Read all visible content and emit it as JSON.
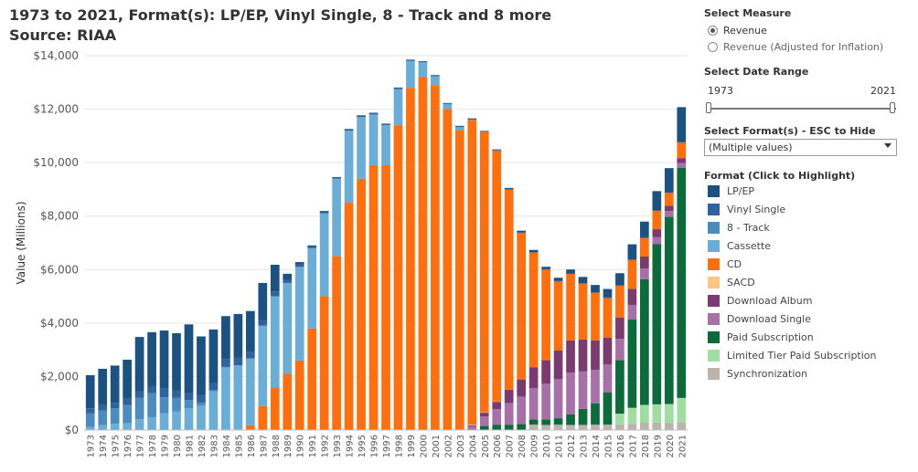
{
  "header": {
    "title": "1973 to 2021, Format(s): LP/EP, Vinyl Single, 8 - Track and 8 more",
    "subtitle": "Source: RIAA"
  },
  "measure": {
    "label": "Select Measure",
    "options": [
      "Revenue",
      "Revenue (Adjusted for Inflation)"
    ],
    "selected": 0
  },
  "date_range": {
    "label": "Select Date Range",
    "start": "1973",
    "end": "2021"
  },
  "format_filter": {
    "label": "Select Format(s) - ESC to Hide",
    "value": "(Multiple values)"
  },
  "legend": {
    "title": "Format (Click to Highlight)"
  },
  "colors": {
    "LP/EP": "#1c5282",
    "Vinyl Single": "#2f63a0",
    "8 - Track": "#4a8cc0",
    "Cassette": "#6aaed8",
    "CD": "#ff6f0e",
    "SACD": "#fcc581",
    "Download Album": "#7b3a70",
    "Download Single": "#a870a8",
    "Paid Subscription": "#0c6b3a",
    "Limited Tier Paid Subscription": "#9fdea0",
    "Synchronization": "#bdb3ad"
  },
  "chart_data": {
    "type": "bar",
    "stacked": true,
    "ylabel": "Value (Millions)",
    "ylim": [
      0,
      14000
    ],
    "yticks": [
      "$0",
      "$2,000",
      "$4,000",
      "$6,000",
      "$8,000",
      "$10,000",
      "$12,000",
      "$14,000"
    ],
    "grid": true,
    "legend_position": "right",
    "categories": [
      "1973",
      "1974",
      "1975",
      "1976",
      "1977",
      "1978",
      "1979",
      "1980",
      "1981",
      "1982",
      "1983",
      "1984",
      "1985",
      "1986",
      "1987",
      "1988",
      "1989",
      "1990",
      "1991",
      "1992",
      "1993",
      "1994",
      "1995",
      "1996",
      "1997",
      "1998",
      "1999",
      "2000",
      "2001",
      "2002",
      "2003",
      "2004",
      "2005",
      "2006",
      "2007",
      "2008",
      "2009",
      "2010",
      "2011",
      "2012",
      "2013",
      "2014",
      "2015",
      "2016",
      "2017",
      "2018",
      "2019",
      "2020",
      "2021"
    ],
    "series": [
      {
        "name": "Synchronization",
        "values": [
          0,
          0,
          0,
          0,
          0,
          0,
          0,
          0,
          0,
          0,
          0,
          0,
          0,
          0,
          0,
          0,
          0,
          0,
          0,
          0,
          0,
          0,
          0,
          0,
          0,
          0,
          0,
          0,
          0,
          0,
          0,
          0,
          0,
          0,
          0,
          0,
          200,
          190,
          200,
          190,
          190,
          200,
          200,
          210,
          230,
          290,
          280,
          270,
          300
        ]
      },
      {
        "name": "Limited Tier Paid Subscription",
        "values": [
          0,
          0,
          0,
          0,
          0,
          0,
          0,
          0,
          0,
          0,
          0,
          0,
          0,
          0,
          0,
          0,
          0,
          0,
          0,
          0,
          0,
          0,
          0,
          0,
          0,
          0,
          0,
          0,
          0,
          0,
          0,
          0,
          0,
          0,
          0,
          0,
          0,
          0,
          0,
          0,
          0,
          0,
          0,
          400,
          600,
          650,
          680,
          700,
          900
        ]
      },
      {
        "name": "Paid Subscription",
        "values": [
          0,
          0,
          0,
          0,
          0,
          0,
          0,
          0,
          0,
          0,
          0,
          0,
          0,
          0,
          0,
          0,
          0,
          0,
          0,
          0,
          0,
          0,
          0,
          0,
          0,
          0,
          0,
          0,
          0,
          0,
          0,
          0,
          150,
          200,
          200,
          220,
          200,
          210,
          240,
          400,
          600,
          800,
          1200,
          2000,
          3300,
          4700,
          6000,
          7000,
          8600
        ]
      },
      {
        "name": "Download Single",
        "values": [
          0,
          0,
          0,
          0,
          0,
          0,
          0,
          0,
          0,
          0,
          0,
          0,
          0,
          0,
          0,
          0,
          0,
          0,
          0,
          0,
          0,
          0,
          0,
          0,
          0,
          0,
          0,
          0,
          0,
          0,
          0,
          140,
          360,
          580,
          810,
          1030,
          1170,
          1330,
          1460,
          1560,
          1400,
          1250,
          1050,
          800,
          550,
          400,
          250,
          220,
          190
        ]
      },
      {
        "name": "Download Album",
        "values": [
          0,
          0,
          0,
          0,
          0,
          0,
          0,
          0,
          0,
          0,
          0,
          0,
          0,
          0,
          0,
          0,
          0,
          0,
          0,
          0,
          0,
          0,
          0,
          0,
          0,
          0,
          0,
          0,
          0,
          0,
          0,
          40,
          140,
          280,
          500,
          640,
          780,
          880,
          1070,
          1200,
          1200,
          1100,
          1000,
          800,
          600,
          450,
          300,
          200,
          180
        ]
      },
      {
        "name": "SACD",
        "values": [
          0,
          0,
          0,
          0,
          0,
          0,
          0,
          0,
          0,
          0,
          0,
          0,
          0,
          0,
          0,
          0,
          0,
          0,
          0,
          0,
          0,
          0,
          0,
          0,
          0,
          0,
          0,
          0,
          0,
          0,
          20,
          20,
          10,
          5,
          0,
          0,
          0,
          0,
          0,
          0,
          0,
          0,
          0,
          0,
          0,
          0,
          0,
          0,
          0
        ]
      },
      {
        "name": "CD",
        "values": [
          0,
          0,
          0,
          0,
          0,
          0,
          0,
          0,
          0,
          0,
          0,
          0,
          20,
          180,
          900,
          1600,
          2100,
          2600,
          3800,
          5000,
          6500,
          8500,
          9400,
          9900,
          9900,
          11400,
          12800,
          13200,
          12900,
          12000,
          11200,
          11400,
          10500,
          9400,
          7500,
          5500,
          4300,
          3400,
          2600,
          2500,
          2100,
          1800,
          1500,
          1200,
          1100,
          700,
          700,
          500,
          600
        ]
      },
      {
        "name": "Cassette",
        "values": [
          120,
          180,
          230,
          250,
          400,
          480,
          620,
          700,
          820,
          900,
          1450,
          2350,
          2400,
          2500,
          3000,
          3400,
          3400,
          3500,
          3000,
          3100,
          2900,
          2700,
          2300,
          1900,
          1500,
          1350,
          1000,
          550,
          340,
          200,
          120,
          20,
          10,
          0,
          0,
          0,
          0,
          0,
          0,
          0,
          0,
          0,
          0,
          0,
          0,
          0,
          0,
          0,
          0
        ]
      },
      {
        "name": "8 - Track",
        "values": [
          500,
          550,
          580,
          680,
          800,
          900,
          600,
          500,
          300,
          120,
          40,
          10,
          0,
          0,
          0,
          0,
          0,
          0,
          0,
          0,
          0,
          0,
          0,
          0,
          0,
          0,
          0,
          0,
          0,
          0,
          0,
          0,
          0,
          0,
          0,
          0,
          0,
          0,
          0,
          0,
          0,
          0,
          0,
          0,
          0,
          0,
          0,
          0,
          0
        ]
      },
      {
        "name": "Vinyl Single",
        "values": [
          190,
          200,
          210,
          240,
          250,
          260,
          350,
          270,
          250,
          280,
          270,
          300,
          280,
          230,
          200,
          180,
          115,
          95,
          65,
          65,
          50,
          45,
          45,
          35,
          25,
          25,
          20,
          20,
          10,
          10,
          10,
          5,
          5,
          5,
          5,
          5,
          5,
          5,
          5,
          5,
          5,
          5,
          5,
          5,
          5,
          5,
          5,
          5,
          5
        ]
      },
      {
        "name": "LP/EP",
        "values": [
          1240,
          1360,
          1390,
          1460,
          2030,
          2020,
          2150,
          2150,
          2580,
          2200,
          2000,
          1600,
          1640,
          1540,
          1400,
          1000,
          230,
          85,
          40,
          30,
          11,
          17,
          25,
          30,
          33,
          35,
          32,
          28,
          25,
          21,
          27,
          30,
          15,
          25,
          40,
          60,
          80,
          90,
          120,
          150,
          230,
          270,
          320,
          450,
          560,
          600,
          720,
          900,
          1300
        ]
      }
    ]
  }
}
